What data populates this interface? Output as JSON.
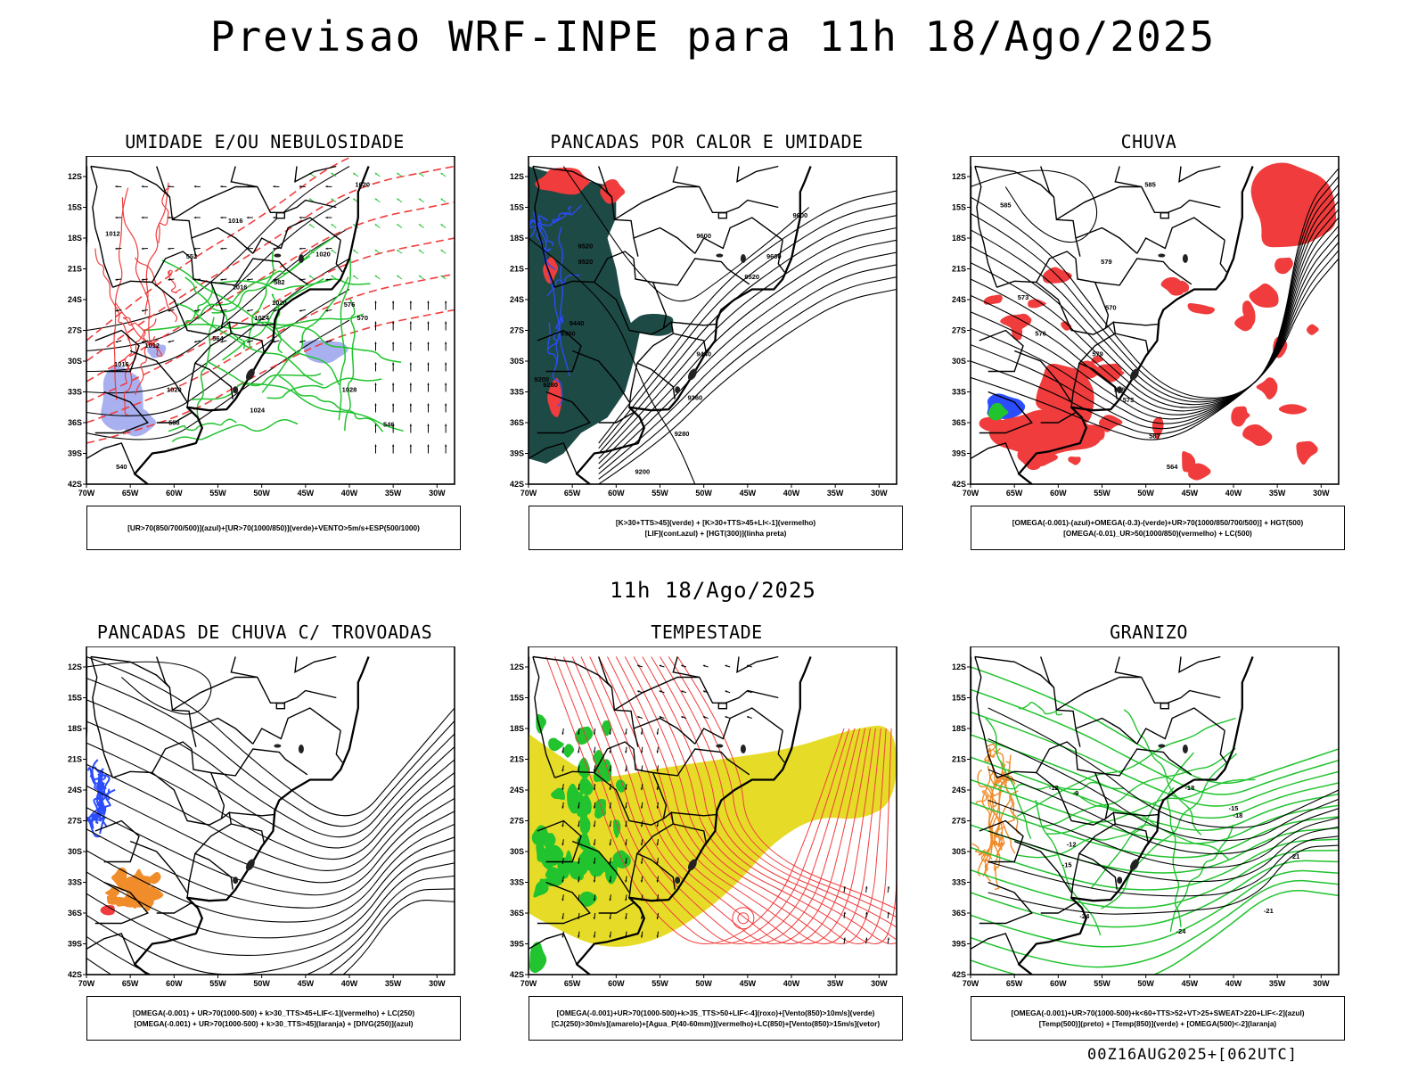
{
  "main_title": "Previsao WRF-INPE  para 11h 18/Ago/2025",
  "middle_title": "11h 18/Ago/2025",
  "footer_stamp": "00Z16AUG2025+[062UTC]",
  "latitude_ticks": [
    "12S",
    "15S",
    "18S",
    "21S",
    "24S",
    "27S",
    "30S",
    "33S",
    "36S",
    "39S",
    "42S"
  ],
  "longitude_ticks": [
    "70W",
    "65W",
    "60W",
    "55W",
    "50W",
    "45W",
    "40W",
    "35W",
    "30W"
  ],
  "colors": {
    "red": "#f03c3c",
    "green": "#21c32f",
    "blue": "#2b4cff",
    "lavender": "#a8b0f0",
    "darkgreen": "#1e4a46",
    "yellow": "#e6dc28",
    "orange": "#f08c2a"
  },
  "panels": [
    {
      "id": "umidade",
      "title": "UMIDADE E/OU NEBULOSIDADE",
      "legend": [
        "[UR>70(850/700/500)](azul)+[UR>70(1000/850)](verde)+VENTO>5m/s+ESP(500/1000)"
      ],
      "contour_labels": [
        "1020",
        "1016",
        "1012",
        "1020",
        "1016",
        "1020",
        "1024",
        "1012",
        "1016",
        "1020",
        "1024",
        "1028",
        "570",
        "576",
        "582",
        "564",
        "558",
        "552",
        "546",
        "540"
      ]
    },
    {
      "id": "pancadas-calor",
      "title": "PANCADAS POR CALOR E UMIDADE",
      "legend": [
        "[K>30+TTS>45](verde) + [K>30+TTS>45+LI<-1](vermelho)",
        "[LIF](cont.azul) + [HGT(300)](linha preta)"
      ],
      "contour_labels": [
        "9600",
        "9600",
        "9520",
        "9520",
        "9440",
        "9360",
        "9280",
        "9200",
        "9440",
        "9360",
        "9280",
        "9200",
        "9520",
        "9600"
      ]
    },
    {
      "id": "chuva",
      "title": "CHUVA",
      "legend": [
        "[OMEGA(-0.001)-(azul)+OMEGA(-0.3)-(verde)+UR>70(1000/850/700/500)] + HGT(500)",
        "[OMEGA(-0.01)_UR>50(1000/850)(vermelho) + LC(500)"
      ],
      "contour_labels": [
        "585",
        "585",
        "579",
        "576",
        "573",
        "570",
        "567",
        "564",
        "579",
        "576",
        "573"
      ]
    },
    {
      "id": "pancadas-trovoadas",
      "title": "PANCADAS DE CHUVA C/ TROVOADAS",
      "legend": [
        "[OMEGA(-0.001) + UR>70(1000-500) + k>30_TTS>45+LIF<-1](vermelho) + LC(250)",
        "[OMEGA(-0.001) + UR>70(1000-500) + k>30_TTS>45](laranja) + [DIVG(250)](azul)"
      ],
      "contour_labels": []
    },
    {
      "id": "tempestade",
      "title": "TEMPESTADE",
      "legend": [
        "[OMEGA(-0.001)+UR>70(1000-500)+k>35_TTS>50+LIF<-4](roxo)+[Vento(850)>10m/s](verde)",
        "[CJ(250)>30m/s](amarelo)+[Agua_P(40-60mm)](vermelho)+LC(850)+[Vento(850)>15m/s](vetor)"
      ],
      "contour_labels": []
    },
    {
      "id": "granizo",
      "title": "GRANIZO",
      "legend": [
        "[OMEGA(-0.001)+UR>70(1000-500)+k<60+TTS>52+VT>25+SWEAT>220+LIF<-2](azul)",
        "[Temp(500)](preto) + [Temp(850)](verde) + [OMEGA(500)<-2](laranja)"
      ],
      "contour_labels": [
        "-12",
        "-15",
        "-18",
        "-21",
        "-24",
        "-9",
        "-12",
        "-15",
        "-18",
        "-21",
        "-24"
      ]
    }
  ]
}
